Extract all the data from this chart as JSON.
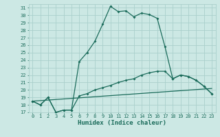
{
  "xlabel": "Humidex (Indice chaleur)",
  "bg_color": "#cce8e4",
  "grid_color": "#aad0cc",
  "line_color": "#1a6b5a",
  "xlim": [
    -0.5,
    23.5
  ],
  "ylim": [
    17,
    31.5
  ],
  "xticks": [
    0,
    1,
    2,
    3,
    4,
    5,
    6,
    7,
    8,
    9,
    10,
    11,
    12,
    13,
    14,
    15,
    16,
    17,
    18,
    19,
    20,
    21,
    22,
    23
  ],
  "yticks": [
    17,
    18,
    19,
    20,
    21,
    22,
    23,
    24,
    25,
    26,
    27,
    28,
    29,
    30,
    31
  ],
  "line1_x": [
    0,
    1,
    2,
    3,
    4,
    5,
    6,
    7,
    8,
    9,
    10,
    11,
    12,
    13,
    14,
    15,
    16,
    17,
    18,
    19,
    20,
    21,
    22,
    23
  ],
  "line1_y": [
    18.5,
    18.0,
    19.0,
    17.0,
    17.3,
    17.3,
    23.8,
    25.0,
    26.5,
    28.8,
    31.2,
    30.5,
    30.6,
    29.8,
    30.3,
    30.1,
    29.6,
    25.8,
    21.5,
    22.0,
    21.8,
    21.3,
    20.5,
    19.5
  ],
  "line2_x": [
    0,
    1,
    2,
    3,
    4,
    5,
    6,
    7,
    8,
    9,
    10,
    11,
    12,
    13,
    14,
    15,
    16,
    17,
    18,
    19,
    20,
    21,
    22,
    23
  ],
  "line2_y": [
    18.5,
    18.0,
    19.0,
    17.0,
    17.3,
    17.3,
    19.2,
    19.5,
    20.0,
    20.3,
    20.6,
    21.0,
    21.3,
    21.5,
    22.0,
    22.3,
    22.5,
    22.5,
    21.5,
    22.0,
    21.8,
    21.3,
    20.5,
    19.5
  ],
  "line3_x": [
    0,
    23
  ],
  "line3_y": [
    18.5,
    20.2
  ],
  "marker": "D",
  "markersize": 2.0,
  "linewidth": 0.9,
  "label_fontsize": 6.0,
  "tick_fontsize": 5.0,
  "xlabel_fontsize": 6.5
}
